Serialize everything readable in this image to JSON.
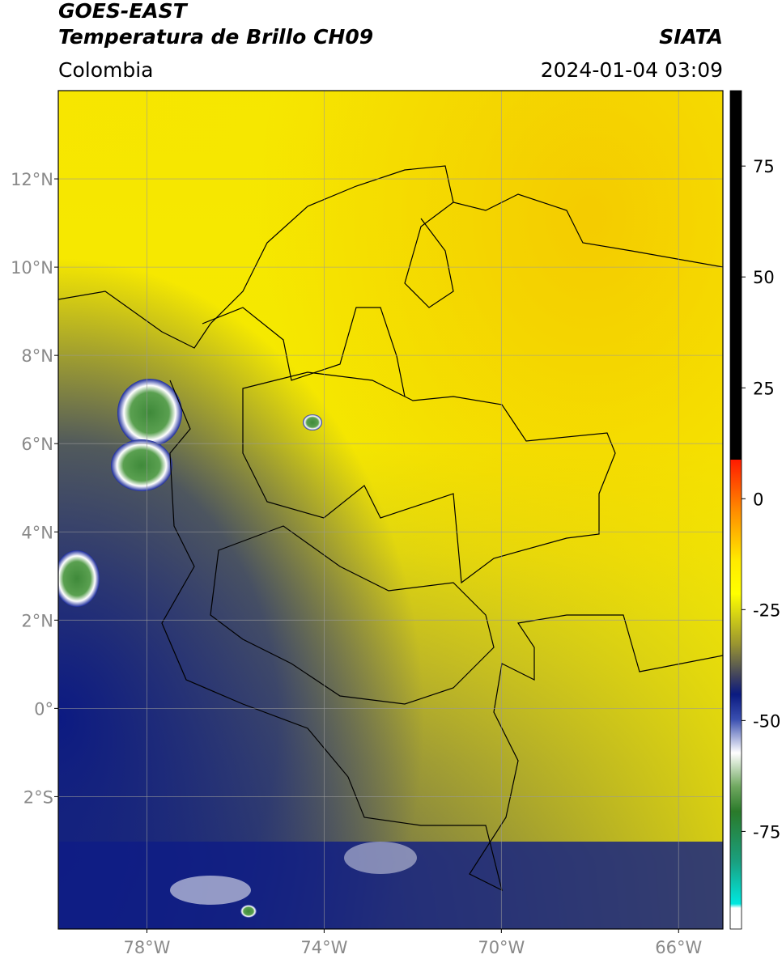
{
  "header": {
    "satellite": "GOES-EAST",
    "product": "Temperatura de Brillo CH09",
    "source": "SIATA",
    "region": "Colombia",
    "datetime": "2024-01-04 03:09"
  },
  "map": {
    "lon_range": [
      -80,
      -65
    ],
    "lat_range": [
      -5,
      14
    ],
    "lon_ticks": [
      {
        "value": -78,
        "label": "78°W"
      },
      {
        "value": -74,
        "label": "74°W"
      },
      {
        "value": -70,
        "label": "70°W"
      },
      {
        "value": -66,
        "label": "66°W"
      }
    ],
    "lat_ticks": [
      {
        "value": 12,
        "label": "12°N"
      },
      {
        "value": 10,
        "label": "10°N"
      },
      {
        "value": 8,
        "label": "8°N"
      },
      {
        "value": 6,
        "label": "6°N"
      },
      {
        "value": 4,
        "label": "4°N"
      },
      {
        "value": 2,
        "label": "2°N"
      },
      {
        "value": 0,
        "label": "0°"
      },
      {
        "value": -2,
        "label": "2°S"
      }
    ],
    "grid": true
  },
  "colorbar": {
    "range": [
      -97,
      92
    ],
    "ticks": [
      75,
      50,
      25,
      0,
      -25,
      -50,
      -75
    ]
  }
}
